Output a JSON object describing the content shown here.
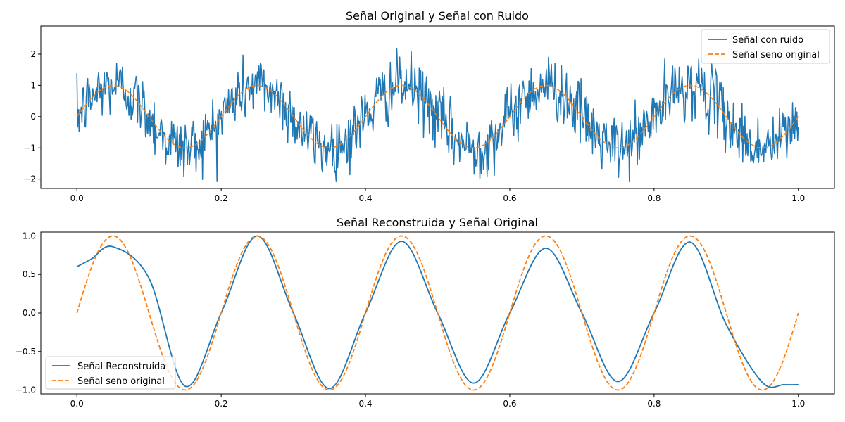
{
  "chart_data": [
    {
      "type": "line",
      "title": "Señal Original y Señal con Ruido",
      "xlabel": "",
      "ylabel": "",
      "xlim": [
        -0.05,
        1.05
      ],
      "ylim": [
        -2.3,
        2.9
      ],
      "xticks": [
        0.0,
        0.2,
        0.4,
        0.6,
        0.8,
        1.0
      ],
      "xtick_labels": [
        "0.0",
        "0.2",
        "0.4",
        "0.6",
        "0.8",
        "1.0"
      ],
      "yticks": [
        -2,
        -1,
        0,
        1,
        2
      ],
      "ytick_labels": [
        "−2",
        "−1",
        "0",
        "1",
        "2"
      ],
      "grid": false,
      "legend": "top-right",
      "series": [
        {
          "name": "Señal con ruido",
          "style": "solid",
          "color": "#1f77b4",
          "n_points": 1000,
          "x_range": [
            0,
            1
          ],
          "noise_std": 0.5,
          "underlying": "sin(2*pi*5*x)"
        },
        {
          "name": "Señal seno original",
          "style": "dashed",
          "color": "#ff7f0e",
          "function": "sin(2*pi*5*x)",
          "x_range": [
            0,
            1
          ]
        }
      ]
    },
    {
      "type": "line",
      "title": "Señal Reconstruida y Señal Original",
      "xlabel": "",
      "ylabel": "",
      "xlim": [
        -0.05,
        1.05
      ],
      "ylim": [
        -1.05,
        1.05
      ],
      "xticks": [
        0.0,
        0.2,
        0.4,
        0.6,
        0.8,
        1.0
      ],
      "xtick_labels": [
        "0.0",
        "0.2",
        "0.4",
        "0.6",
        "0.8",
        "1.0"
      ],
      "yticks": [
        -1.0,
        -0.5,
        0.0,
        0.5,
        1.0
      ],
      "ytick_labels": [
        "−1.0",
        "−0.5",
        "0.0",
        "0.5",
        "1.0"
      ],
      "grid": false,
      "legend": "bottom-left",
      "series": [
        {
          "name": "Señal Reconstruida",
          "style": "solid",
          "color": "#1f77b4",
          "x": [
            0.0,
            0.02,
            0.05,
            0.1,
            0.15,
            0.2,
            0.25,
            0.3,
            0.35,
            0.4,
            0.45,
            0.5,
            0.55,
            0.6,
            0.65,
            0.7,
            0.75,
            0.8,
            0.85,
            0.9,
            0.95,
            0.98,
            1.0
          ],
          "y": [
            0.6,
            0.7,
            0.86,
            0.45,
            -0.95,
            0.0,
            1.0,
            0.0,
            -0.98,
            0.0,
            0.93,
            0.0,
            -0.91,
            0.0,
            0.84,
            0.0,
            -0.89,
            0.0,
            0.92,
            -0.15,
            -0.9,
            -0.93,
            -0.93
          ]
        },
        {
          "name": "Señal seno original",
          "style": "dashed",
          "color": "#ff7f0e",
          "function": "sin(2*pi*5*x)",
          "x_range": [
            0,
            1
          ]
        }
      ]
    }
  ]
}
